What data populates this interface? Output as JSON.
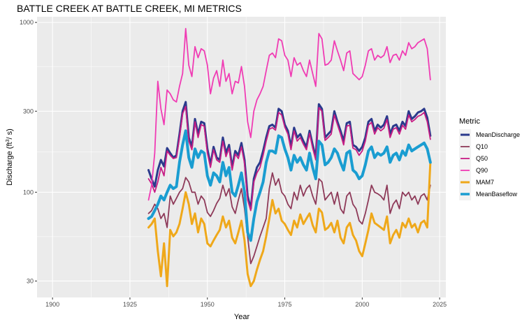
{
  "chart_data": {
    "type": "line",
    "title": "BATTLE CREEK AT BATTLE CREEK, MI  METRICS",
    "xlabel": "Year",
    "ylabel_main": "Discharge (ft",
    "ylabel_sup": "3",
    "ylabel_end": "/ s)",
    "x_scale": "linear",
    "y_scale": "log10",
    "xlim": [
      1895,
      2027
    ],
    "ylim": [
      24,
      1080
    ],
    "x_ticks": [
      1900,
      1925,
      1950,
      1975,
      2000,
      2025
    ],
    "x_tick_labels": [
      "1900",
      "1925",
      "1950",
      "1975",
      "2000",
      "2025"
    ],
    "y_ticks": [
      30,
      100,
      300,
      1000
    ],
    "y_tick_labels": [
      "30",
      "100",
      "300",
      "1000"
    ],
    "grid": true,
    "panel_background": "#EBEBEB",
    "legend": {
      "title": "Metric",
      "placement": "right"
    },
    "x": [
      1931,
      1932,
      1933,
      1934,
      1935,
      1936,
      1937,
      1938,
      1939,
      1940,
      1941,
      1942,
      1943,
      1944,
      1945,
      1946,
      1947,
      1948,
      1949,
      1950,
      1951,
      1952,
      1953,
      1954,
      1955,
      1956,
      1957,
      1958,
      1959,
      1960,
      1961,
      1962,
      1963,
      1964,
      1965,
      1966,
      1967,
      1968,
      1969,
      1970,
      1971,
      1972,
      1973,
      1974,
      1975,
      1976,
      1977,
      1978,
      1979,
      1980,
      1981,
      1982,
      1983,
      1984,
      1985,
      1986,
      1987,
      1988,
      1989,
      1990,
      1991,
      1992,
      1993,
      1994,
      1995,
      1996,
      1997,
      1998,
      1999,
      2000,
      2001,
      2002,
      2003,
      2004,
      2005,
      2006,
      2007,
      2008,
      2009,
      2010,
      2011,
      2012,
      2013,
      2014,
      2015,
      2016,
      2017,
      2018,
      2019,
      2020,
      2021,
      2022
    ],
    "series": [
      {
        "name": "MeanDischarge",
        "color": "#2B3A8C",
        "width": 3.0,
        "values": [
          135,
          120,
          108,
          135,
          155,
          142,
          182,
          170,
          160,
          165,
          220,
          300,
          340,
          210,
          185,
          270,
          220,
          260,
          255,
          180,
          145,
          185,
          160,
          155,
          210,
          170,
          190,
          140,
          175,
          165,
          195,
          155,
          95,
          80,
          120,
          140,
          150,
          175,
          210,
          245,
          250,
          240,
          310,
          300,
          250,
          230,
          185,
          240,
          210,
          220,
          200,
          185,
          230,
          190,
          160,
          330,
          310,
          210,
          220,
          230,
          300,
          260,
          230,
          200,
          255,
          260,
          190,
          185,
          175,
          185,
          210,
          260,
          270,
          230,
          250,
          240,
          250,
          280,
          220,
          245,
          250,
          230,
          260,
          245,
          300,
          270,
          280,
          295,
          300,
          310,
          275,
          215
        ]
      },
      {
        "name": "Q10",
        "color": "#8E3A59",
        "width": 1.8,
        "values": [
          75,
          78,
          85,
          80,
          70,
          75,
          62,
          95,
          85,
          92,
          100,
          105,
          122,
          115,
          100,
          100,
          85,
          95,
          90,
          76,
          72,
          78,
          86,
          92,
          110,
          95,
          105,
          82,
          75,
          90,
          105,
          80,
          55,
          38,
          42,
          48,
          55,
          62,
          70,
          105,
          130,
          110,
          120,
          100,
          95,
          85,
          80,
          100,
          90,
          110,
          95,
          105,
          110,
          95,
          85,
          120,
          115,
          90,
          95,
          100,
          85,
          100,
          80,
          75,
          95,
          100,
          85,
          80,
          68,
          65,
          75,
          90,
          110,
          100,
          98,
          95,
          90,
          110,
          75,
          85,
          90,
          80,
          100,
          95,
          100,
          90,
          95,
          85,
          95,
          98,
          90,
          110
        ]
      },
      {
        "name": "Q50",
        "color": "#C71C84",
        "width": 1.8,
        "values": [
          120,
          112,
          100,
          115,
          140,
          125,
          175,
          165,
          158,
          160,
          210,
          290,
          320,
          200,
          178,
          260,
          210,
          250,
          245,
          170,
          140,
          178,
          155,
          150,
          200,
          162,
          182,
          135,
          168,
          158,
          185,
          148,
          90,
          78,
          115,
          130,
          140,
          165,
          200,
          235,
          240,
          232,
          295,
          285,
          242,
          220,
          178,
          230,
          200,
          210,
          192,
          178,
          222,
          182,
          155,
          315,
          300,
          202,
          210,
          220,
          285,
          250,
          220,
          190,
          245,
          248,
          182,
          178,
          165,
          175,
          200,
          248,
          258,
          220,
          240,
          230,
          238,
          268,
          210,
          235,
          240,
          220,
          248,
          235,
          285,
          260,
          268,
          280,
          285,
          295,
          260,
          205
        ]
      },
      {
        "name": "Q90",
        "color": "#F03CB4",
        "width": 1.8,
        "values": [
          90,
          110,
          170,
          450,
          310,
          250,
          400,
          380,
          350,
          340,
          420,
          500,
          920,
          560,
          480,
          720,
          620,
          700,
          680,
          560,
          380,
          470,
          520,
          420,
          600,
          450,
          500,
          380,
          450,
          440,
          550,
          420,
          260,
          210,
          300,
          350,
          380,
          420,
          520,
          640,
          660,
          620,
          800,
          780,
          640,
          600,
          480,
          620,
          560,
          580,
          520,
          480,
          600,
          500,
          420,
          860,
          800,
          560,
          570,
          600,
          780,
          680,
          600,
          520,
          660,
          680,
          500,
          480,
          460,
          480,
          560,
          680,
          700,
          600,
          640,
          620,
          640,
          720,
          580,
          640,
          650,
          600,
          680,
          640,
          760,
          700,
          720,
          760,
          780,
          800,
          700,
          460
        ]
      },
      {
        "name": "MAM7",
        "color": "#EFA81A",
        "width": 3.0,
        "values": [
          62,
          65,
          70,
          45,
          32,
          50,
          28,
          60,
          55,
          58,
          65,
          80,
          100,
          85,
          65,
          75,
          58,
          70,
          65,
          50,
          48,
          52,
          56,
          60,
          72,
          62,
          68,
          54,
          50,
          58,
          68,
          52,
          33,
          28,
          30,
          35,
          40,
          45,
          55,
          70,
          90,
          75,
          80,
          68,
          65,
          60,
          56,
          68,
          62,
          74,
          65,
          70,
          75,
          64,
          58,
          80,
          76,
          60,
          62,
          66,
          58,
          68,
          54,
          50,
          62,
          66,
          56,
          52,
          45,
          42,
          50,
          60,
          75,
          66,
          64,
          62,
          60,
          72,
          50,
          56,
          60,
          54,
          66,
          62,
          70,
          62,
          65,
          58,
          66,
          68,
          62,
          150
        ]
      },
      {
        "name": "MeanBaseflow",
        "color": "#1A9DD1",
        "width": 4.0,
        "values": [
          70,
          72,
          78,
          85,
          95,
          90,
          100,
          110,
          105,
          108,
          150,
          190,
          230,
          160,
          140,
          180,
          160,
          175,
          170,
          125,
          110,
          130,
          125,
          115,
          150,
          125,
          140,
          100,
          95,
          110,
          130,
          100,
          58,
          52,
          70,
          88,
          100,
          115,
          150,
          175,
          175,
          170,
          215,
          210,
          180,
          160,
          135,
          165,
          150,
          160,
          145,
          135,
          170,
          140,
          120,
          200,
          190,
          145,
          150,
          160,
          180,
          170,
          150,
          135,
          170,
          175,
          135,
          130,
          120,
          125,
          145,
          175,
          185,
          160,
          170,
          165,
          170,
          185,
          150,
          165,
          170,
          155,
          175,
          165,
          190,
          175,
          180,
          185,
          190,
          195,
          180,
          150
        ]
      }
    ]
  }
}
